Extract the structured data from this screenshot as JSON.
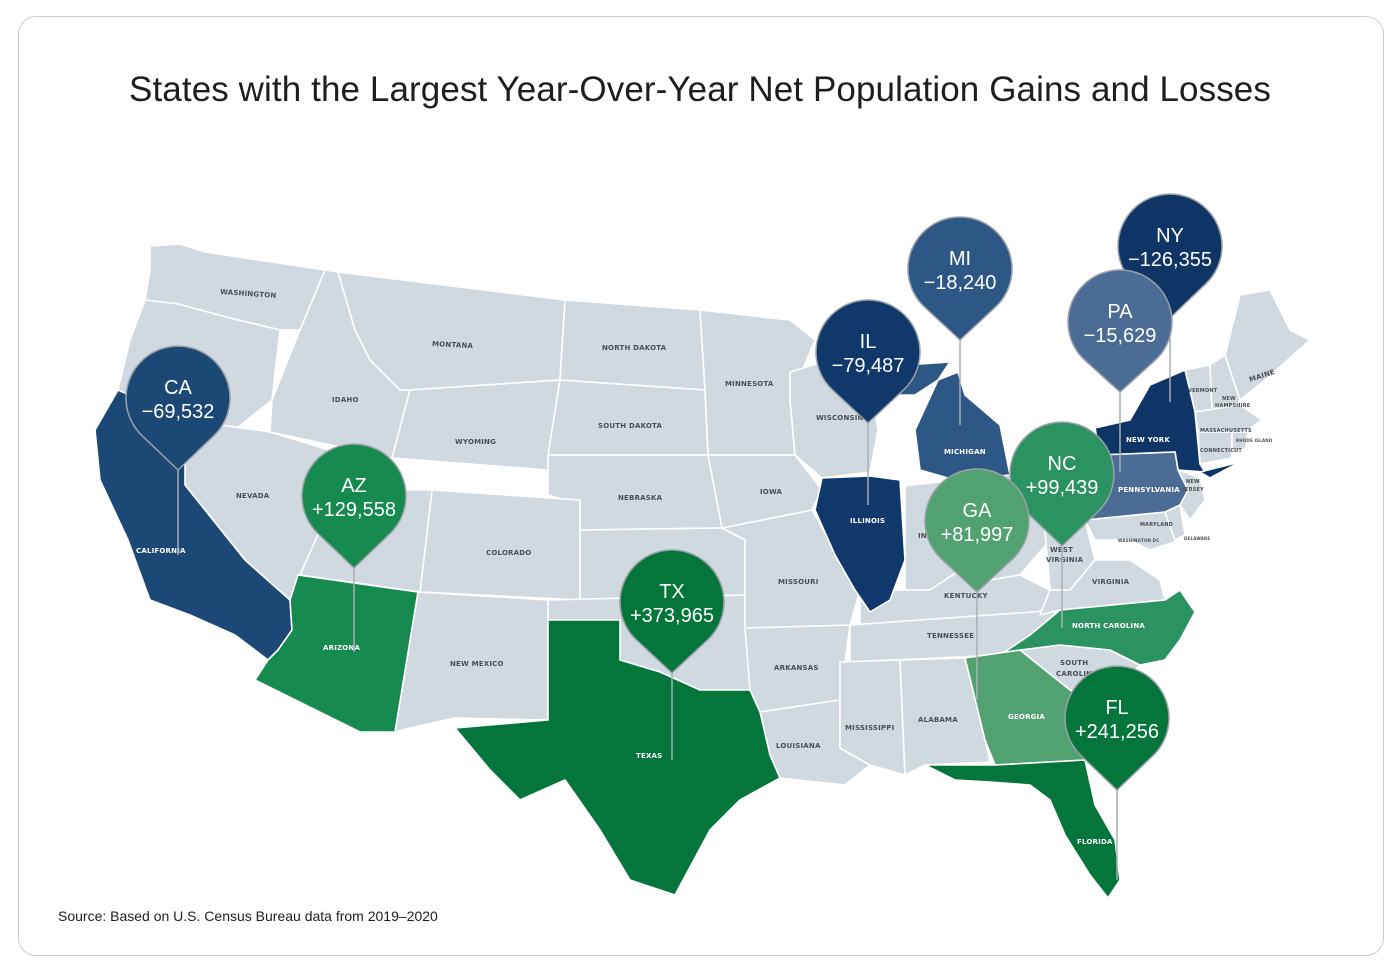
{
  "title": "States with the Largest Year-Over-Year Net Population Gains and Losses",
  "source": "Source: Based on U.S. Census Bureau data from 2019–2020",
  "colors": {
    "base": "#d0d9e0",
    "border": "#ffffff",
    "gain_dark": "#04763b",
    "gain_mid": "#168a4f",
    "gain_light": "#52a271",
    "loss_darkest": "#0e3566",
    "loss_dark": "#1c4876",
    "loss_mid": "#2d5886",
    "loss_light": "#4a6c95"
  },
  "pins": [
    {
      "abbr": "CA",
      "value": "−69,532",
      "color": "#1c4876"
    },
    {
      "abbr": "AZ",
      "value": "+129,558",
      "color": "#168a4f"
    },
    {
      "abbr": "TX",
      "value": "+373,965",
      "color": "#04763b"
    },
    {
      "abbr": "IL",
      "value": "−79,487",
      "color": "#10386a"
    },
    {
      "abbr": "MI",
      "value": "−18,240",
      "color": "#2d5886"
    },
    {
      "abbr": "NY",
      "value": "−126,355",
      "color": "#0e3566"
    },
    {
      "abbr": "PA",
      "value": "−15,629",
      "color": "#4a6c95"
    },
    {
      "abbr": "NC",
      "value": "+99,439",
      "color": "#2b9361"
    },
    {
      "abbr": "GA",
      "value": "+81,997",
      "color": "#52a271"
    },
    {
      "abbr": "FL",
      "value": "+241,256",
      "color": "#04763b"
    }
  ],
  "state_labels": {
    "washington": "WASHINGTON",
    "montana": "MONTANA",
    "north_dakota": "NORTH DAKOTA",
    "minnesota": "MINNESOTA",
    "idaho": "IDAHO",
    "south_dakota": "SOUTH DAKOTA",
    "wisconsin": "WISCONSIN",
    "wyoming": "WYOMING",
    "nevada": "NEVADA",
    "california": "CALIFORNIA",
    "nebraska": "NEBRASKA",
    "iowa": "IOWA",
    "colorado": "COLORADO",
    "illinois": "ILLINOIS",
    "michigan": "MICHIGAN",
    "indiana": "IND",
    "arizona": "ARIZONA",
    "new_mexico": "NEW MEXICO",
    "texas": "TEXAS",
    "missouri": "MISSOURI",
    "arkansas": "ARKANSAS",
    "louisiana": "LOUISIANA",
    "mississippi": "MISSISSIPPI",
    "alabama": "ALABAMA",
    "georgia": "GEORGIA",
    "florida": "FLORIDA",
    "tennessee": "TENNESSEE",
    "kentucky": "KENTUCKY",
    "west_virginia_1": "WEST",
    "west_virginia_2": "VIRGINIA",
    "virginia": "VIRGINIA",
    "north_carolina": "NORTH CAROLINA",
    "south_carolina_1": "SOUTH",
    "south_carolina_2": "CAROLINA",
    "pennsylvania": "PENNSYLVANIA",
    "new_york": "NEW YORK",
    "new_jersey_1": "NEW",
    "new_jersey_2": "JERSEY",
    "maryland": "MARYLAND",
    "vermont": "VERMONT",
    "new_hampshire_1": "NEW",
    "new_hampshire_2": "HAMPSHIRE",
    "maine": "MAINE",
    "massachusetts": "MASSACHUSETTS",
    "connecticut": "CONNECTICUT",
    "rhode_island": "RHODE ISLAND",
    "delaware": "DELAWARE",
    "washington_dc": "WASHINGTON DC"
  }
}
